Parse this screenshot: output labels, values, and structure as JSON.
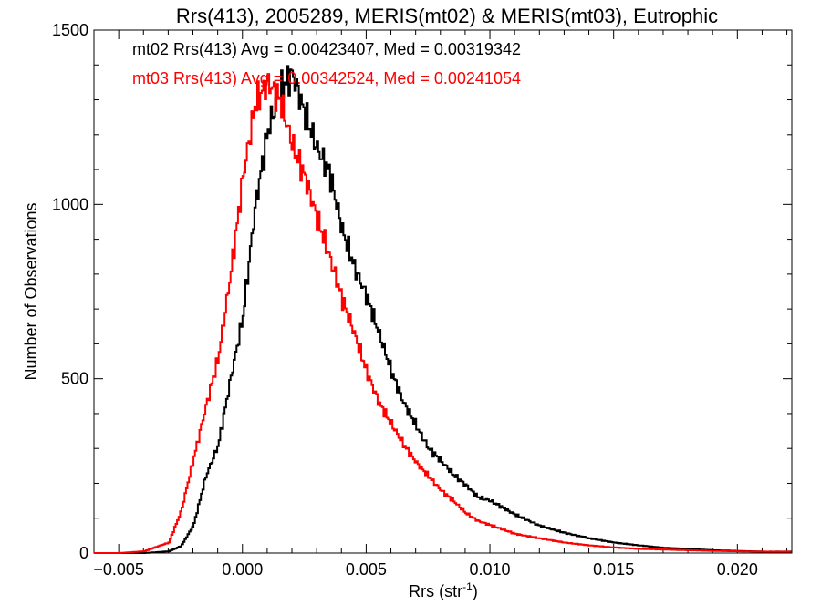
{
  "chart_data": {
    "type": "line",
    "title": "Rrs(413), 2005289, MERIS(mt02) & MERIS(mt03), Eutrophic",
    "xlabel_main": "Rrs (str",
    "xlabel_sup": "-1",
    "xlabel_close": ")",
    "ylabel": "Number of Observations",
    "xlim": [
      -0.006,
      0.0222
    ],
    "ylim": [
      0,
      1500
    ],
    "grid": false,
    "xticks": [
      -0.005,
      0.0,
      0.005,
      0.01,
      0.015,
      0.02
    ],
    "xtick_labels": [
      "−0.005",
      "0.000",
      "0.005",
      "0.010",
      "0.015",
      "0.020"
    ],
    "yticks": [
      0,
      500,
      1000,
      1500
    ],
    "ytick_labels": [
      "0",
      "500",
      "1000",
      "1500"
    ],
    "annotations": [
      {
        "text": "mt02 Rrs(413) Avg = 0.00423407, Med = 0.00319342",
        "color": "#000000"
      },
      {
        "text": "mt03 Rrs(413) Avg = 0.00342524, Med = 0.00241054",
        "color": "#ff0000"
      }
    ],
    "series": [
      {
        "color": "#000000",
        "x": [
          -0.006,
          -0.005,
          -0.004,
          -0.003,
          -0.0025,
          -0.002,
          -0.0015,
          -0.001,
          -0.0005,
          0.0,
          0.0005,
          0.001,
          0.0015,
          0.002,
          0.0025,
          0.003,
          0.0035,
          0.004,
          0.0045,
          0.005,
          0.0055,
          0.006,
          0.0065,
          0.007,
          0.0075,
          0.008,
          0.0085,
          0.009,
          0.0095,
          0.01,
          0.011,
          0.012,
          0.013,
          0.014,
          0.015,
          0.016,
          0.017,
          0.018,
          0.019,
          0.02,
          0.021,
          0.022
        ],
        "y": [
          0,
          0,
          0,
          5,
          20,
          80,
          220,
          310,
          500,
          680,
          1000,
          1210,
          1330,
          1375,
          1260,
          1160,
          1090,
          930,
          820,
          735,
          630,
          520,
          430,
          365,
          300,
          265,
          225,
          195,
          160,
          150,
          110,
          78,
          58,
          42,
          30,
          22,
          15,
          12,
          8,
          6,
          4,
          4
        ]
      },
      {
        "color": "#ff0000",
        "x": [
          -0.006,
          -0.005,
          -0.004,
          -0.003,
          -0.0025,
          -0.002,
          -0.0015,
          -0.001,
          -0.0005,
          0.0,
          0.0005,
          0.001,
          0.0015,
          0.002,
          0.0025,
          0.003,
          0.0035,
          0.004,
          0.0045,
          0.005,
          0.0055,
          0.006,
          0.0065,
          0.007,
          0.0075,
          0.008,
          0.0085,
          0.009,
          0.0095,
          0.01,
          0.011,
          0.012,
          0.013,
          0.014,
          0.015,
          0.016,
          0.017,
          0.018,
          0.019,
          0.02,
          0.021,
          0.022
        ],
        "y": [
          0,
          0,
          5,
          30,
          120,
          270,
          420,
          560,
          800,
          1080,
          1290,
          1350,
          1300,
          1170,
          1080,
          960,
          850,
          730,
          630,
          520,
          430,
          370,
          310,
          260,
          220,
          180,
          150,
          115,
          92,
          80,
          55,
          42,
          30,
          22,
          16,
          12,
          10,
          8,
          6,
          5,
          4,
          4
        ]
      }
    ]
  }
}
